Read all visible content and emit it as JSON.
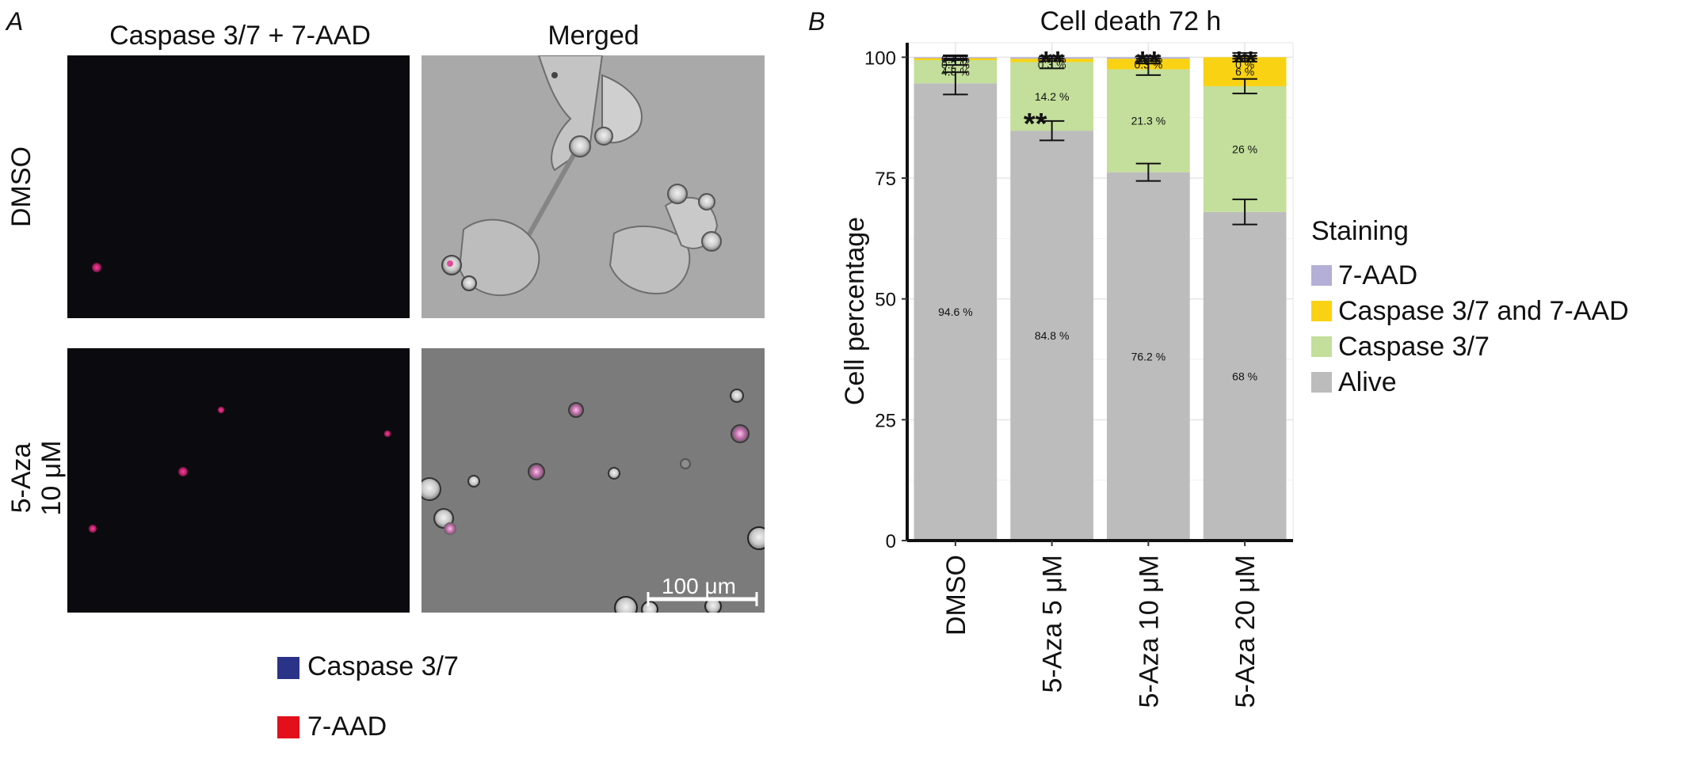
{
  "panel_a": {
    "letter": "A",
    "col_titles": [
      "Caspase 3/7 + 7-AAD",
      "Merged"
    ],
    "row_labels": [
      [
        "DMSO"
      ],
      [
        "5-Aza",
        "10 μM"
      ]
    ],
    "scale_bar": "100 μm",
    "legend": [
      {
        "label": "Caspase 3/7",
        "color": "#2b3388"
      },
      {
        "label": "7-AAD",
        "color": "#e3101c"
      }
    ]
  },
  "panel_b": {
    "letter": "B"
  },
  "chart_data": {
    "type": "bar",
    "stacked": true,
    "title": "Cell death 72 h",
    "xlabel": "",
    "ylabel": "Cell percentage",
    "ylim": [
      0,
      103
    ],
    "yticks": [
      0,
      25,
      50,
      75,
      100
    ],
    "grid": true,
    "legend_title": "Staining",
    "legend_position": "right",
    "categories": [
      "DMSO",
      "5-Aza 5 μM",
      "5-Aza 10 μM",
      "5-Aza 20 μM"
    ],
    "series": [
      {
        "name": "Alive",
        "color": "#bcbcbc",
        "values": [
          94.6,
          84.8,
          76.2,
          68.0
        ],
        "labels": [
          "94.6 %",
          "84.8 %",
          "76.2 %",
          "68 %"
        ],
        "error": [
          2.3,
          2.0,
          1.8,
          2.6
        ]
      },
      {
        "name": "Caspase 3/7",
        "color": "#c3df9b",
        "values": [
          4.8,
          14.2,
          21.3,
          26.0
        ],
        "labels": [
          "4.8 %",
          "14.2 %",
          "21.3 %",
          "26 %"
        ],
        "error": [
          1.0,
          1.3,
          1.2,
          1.5
        ]
      },
      {
        "name": "Caspase 3/7 and 7-AAD",
        "color": "#f9d213",
        "values": [
          0.4,
          0.7,
          2.2,
          6.0
        ],
        "labels": [
          "0.4 %",
          "0.7 %",
          "2.2 %",
          "6 %"
        ],
        "error": [
          0.4,
          0.5,
          0.5,
          0.9
        ]
      },
      {
        "name": "7-AAD",
        "color": "#b3afd6",
        "values": [
          0.2,
          0.3,
          0.3,
          0.0
        ],
        "labels": [
          "0.2 %",
          "0.3 %",
          "0.3 %",
          "0 %"
        ],
        "error": [
          0.3,
          0.3,
          0.3,
          0.3
        ]
      }
    ],
    "significance": [
      {
        "category": "5-Aza 5 μM",
        "text": "**"
      },
      {
        "category": "5-Aza 10 μM",
        "text": "**"
      },
      {
        "category": "5-Aza 20 μM",
        "text": "**"
      },
      {
        "category": "5-Aza 5 μM",
        "series": "Alive",
        "text": "**"
      }
    ]
  }
}
